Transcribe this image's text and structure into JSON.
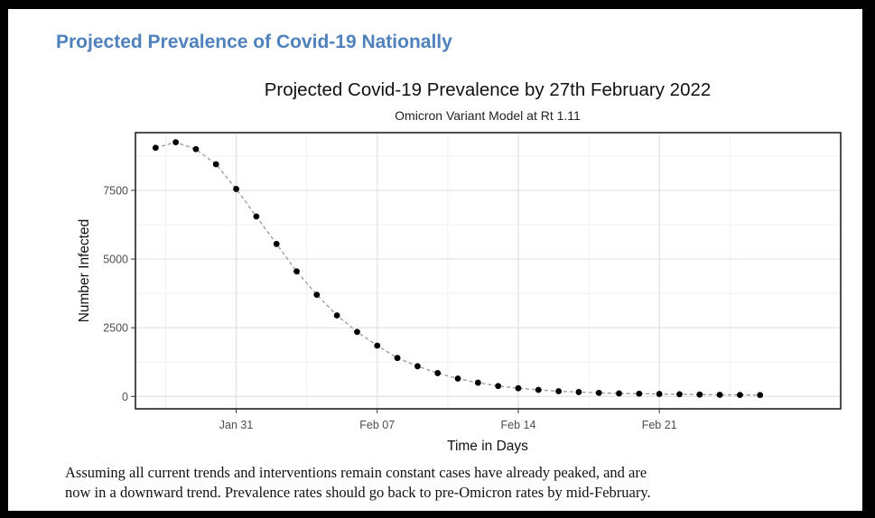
{
  "section_title": "Projected Prevalence of Covid-19 Nationally",
  "caption_lines": [
    "Assuming all current trends and interventions remain constant cases have already peaked, and are",
    "now in a downward trend. Prevalence rates should go back to pre-Omicron rates by mid-February."
  ],
  "chart_data": {
    "type": "scatter",
    "title": "Projected Covid-19 Prevalence by 27th February 2022",
    "subtitle": "Omicron Variant Model at Rt 1.11",
    "xlabel": "Time in Days",
    "ylabel": "Number Infected",
    "x_tick_labels": [
      "Jan 31",
      "Feb 07",
      "Feb 14",
      "Feb 21"
    ],
    "x_tick_dates": [
      "2022-01-31",
      "2022-02-07",
      "2022-02-14",
      "2022-02-21"
    ],
    "y_ticks": [
      0,
      2500,
      5000,
      7500
    ],
    "y_tick_labels": [
      "0",
      "2500",
      "5000",
      "7500"
    ],
    "xlim": [
      "2022-01-26",
      "2022-03-02"
    ],
    "ylim": [
      -450,
      9600
    ],
    "grid": true,
    "line_style": "dashed",
    "point_color": "#000000",
    "line_color": "#999999",
    "x": [
      "2022-01-27",
      "2022-01-28",
      "2022-01-29",
      "2022-01-30",
      "2022-01-31",
      "2022-02-01",
      "2022-02-02",
      "2022-02-03",
      "2022-02-04",
      "2022-02-05",
      "2022-02-06",
      "2022-02-07",
      "2022-02-08",
      "2022-02-09",
      "2022-02-10",
      "2022-02-11",
      "2022-02-12",
      "2022-02-13",
      "2022-02-14",
      "2022-02-15",
      "2022-02-16",
      "2022-02-17",
      "2022-02-18",
      "2022-02-19",
      "2022-02-20",
      "2022-02-21",
      "2022-02-22",
      "2022-02-23",
      "2022-02-24",
      "2022-02-25",
      "2022-02-26"
    ],
    "y": [
      9050,
      9250,
      9000,
      8450,
      7550,
      6550,
      5550,
      4550,
      3700,
      2950,
      2350,
      1850,
      1400,
      1100,
      850,
      650,
      500,
      380,
      300,
      240,
      190,
      160,
      130,
      110,
      100,
      90,
      80,
      70,
      60,
      55,
      50
    ]
  }
}
